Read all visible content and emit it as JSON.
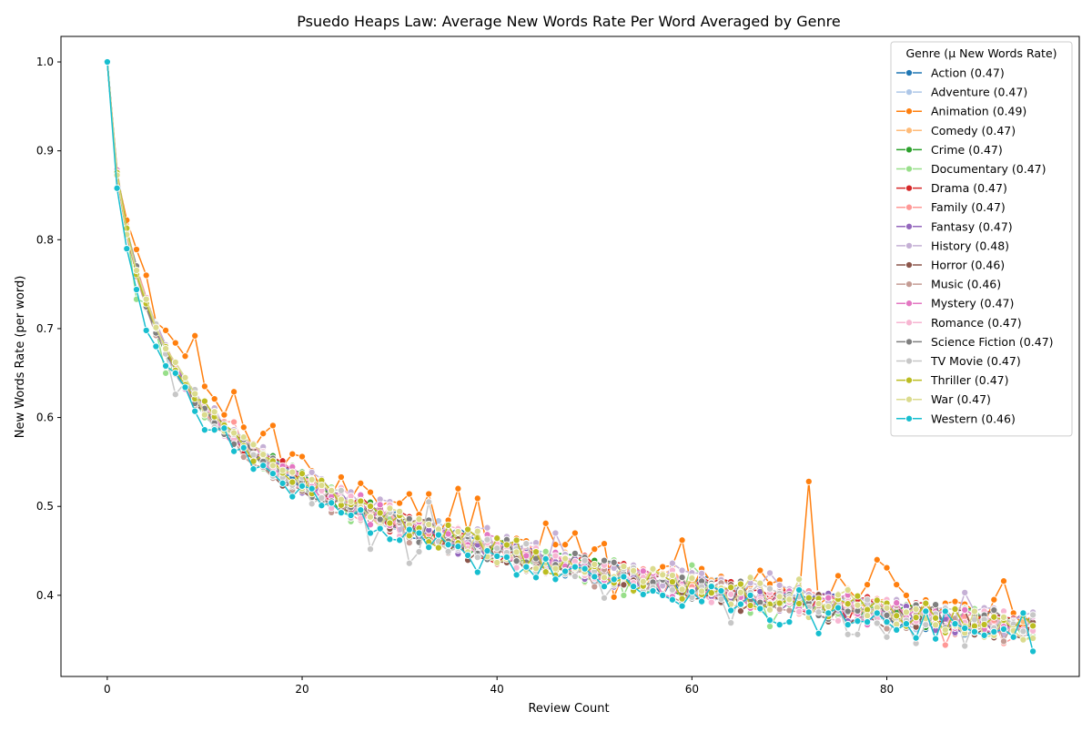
{
  "chart_data": {
    "type": "line",
    "title": "Psuedo Heaps Law: Average New Words Rate Per Word Averaged by Genre",
    "xlabel": "Review Count",
    "ylabel": "New Words Rate (per word)",
    "xlim": [
      -4.75,
      99.75
    ],
    "ylim": [
      0.3087,
      1.0287
    ],
    "x_ticks": [
      0,
      20,
      40,
      60,
      80
    ],
    "y_ticks": [
      0.4,
      0.5,
      0.6,
      0.7,
      0.8,
      0.9,
      1.0
    ],
    "x_tick_labels": [
      "0",
      "20",
      "40",
      "60",
      "80"
    ],
    "y_tick_labels": [
      "0.4",
      "0.5",
      "0.6",
      "0.7",
      "0.8",
      "0.9",
      "1.0"
    ],
    "grid": false,
    "legend_title": "Genre (μ New Words Rate)",
    "legend_position": "top-right",
    "series": [
      {
        "name": "Action (0.47)",
        "mean": 0.47,
        "color": "#1f77b4"
      },
      {
        "name": "Adventure (0.47)",
        "mean": 0.47,
        "color": "#aec7e8"
      },
      {
        "name": "Animation (0.49)",
        "mean": 0.49,
        "color": "#ff7f0e",
        "overrides": {
          "2": 0.822,
          "3": 0.789,
          "4": 0.76,
          "6": 0.698,
          "7": 0.684,
          "8": 0.669,
          "9": 0.692,
          "10": 0.635,
          "11": 0.621,
          "12": 0.603,
          "13": 0.629,
          "14": 0.589,
          "16": 0.582,
          "17": 0.591,
          "19": 0.559,
          "20": 0.556,
          "21": 0.54,
          "24": 0.533,
          "26": 0.526,
          "27": 0.516,
          "29": 0.506,
          "31": 0.514,
          "33": 0.514,
          "36": 0.52,
          "37": 0.47,
          "38": 0.509,
          "42": 0.464,
          "45": 0.481,
          "46": 0.457,
          "47": 0.457,
          "48": 0.47,
          "50": 0.452,
          "51": 0.458,
          "52": 0.398,
          "59": 0.462,
          "61": 0.43,
          "62": 0.415,
          "67": 0.428,
          "69": 0.417,
          "72": 0.528,
          "73": 0.39,
          "75": 0.422,
          "78": 0.412,
          "79": 0.44,
          "80": 0.431,
          "81": 0.412,
          "82": 0.4,
          "88": 0.39,
          "91": 0.395,
          "92": 0.416,
          "93": 0.38,
          "95": 0.38
        }
      },
      {
        "name": "Comedy (0.47)",
        "mean": 0.47,
        "color": "#ffbb78"
      },
      {
        "name": "Crime (0.47)",
        "mean": 0.47,
        "color": "#2ca02c"
      },
      {
        "name": "Documentary (0.47)",
        "mean": 0.47,
        "color": "#98df8a",
        "overrides": {
          "3": 0.733,
          "6": 0.65,
          "10": 0.6,
          "17": 0.533,
          "25": 0.483,
          "53": 0.4,
          "60": 0.434,
          "66": 0.38,
          "68": 0.365,
          "80": 0.395
        }
      },
      {
        "name": "Drama (0.47)",
        "mean": 0.47,
        "color": "#d62728"
      },
      {
        "name": "Family (0.47)",
        "mean": 0.47,
        "color": "#ff9896",
        "overrides": {
          "13": 0.595,
          "86": 0.344,
          "92": 0.346
        }
      },
      {
        "name": "Fantasy (0.47)",
        "mean": 0.47,
        "color": "#9467bd"
      },
      {
        "name": "History (0.48)",
        "mean": 0.48,
        "color": "#c5b0d5",
        "overrides": {
          "39": 0.476,
          "41": 0.466,
          "46": 0.47,
          "58": 0.436,
          "68": 0.425,
          "88": 0.403
        }
      },
      {
        "name": "Horror (0.46)",
        "mean": 0.46,
        "color": "#8c564b"
      },
      {
        "name": "Music (0.46)",
        "mean": 0.46,
        "color": "#c49c94"
      },
      {
        "name": "Mystery (0.47)",
        "mean": 0.47,
        "color": "#e377c2"
      },
      {
        "name": "Romance (0.47)",
        "mean": 0.47,
        "color": "#f7b6d2"
      },
      {
        "name": "Science Fiction (0.47)",
        "mean": 0.47,
        "color": "#7f7f7f"
      },
      {
        "name": "TV Movie (0.47)",
        "mean": 0.47,
        "color": "#c7c7c7",
        "overrides": {
          "7": 0.626,
          "21": 0.503,
          "27": 0.452,
          "31": 0.436,
          "32": 0.449,
          "33": 0.505,
          "51": 0.397,
          "64": 0.369,
          "76": 0.356,
          "77": 0.356,
          "80": 0.353,
          "83": 0.346,
          "88": 0.343
        }
      },
      {
        "name": "Thriller (0.47)",
        "mean": 0.47,
        "color": "#bcbd22"
      },
      {
        "name": "War (0.47)",
        "mean": 0.47,
        "color": "#dbdb8d",
        "overrides": {
          "38": 0.472,
          "66": 0.42,
          "71": 0.418,
          "76": 0.406
        }
      },
      {
        "name": "Western (0.46)",
        "mean": 0.46,
        "color": "#17becf",
        "overrides": {
          "0": 1.0,
          "1": 0.858,
          "2": 0.79,
          "3": 0.744,
          "4": 0.698,
          "5": 0.68,
          "6": 0.658,
          "7": 0.65,
          "8": 0.634,
          "9": 0.607,
          "10": 0.586,
          "11": 0.586,
          "12": 0.588,
          "13": 0.562,
          "14": 0.566,
          "15": 0.542,
          "16": 0.546,
          "17": 0.537,
          "18": 0.526,
          "19": 0.511,
          "20": 0.523,
          "21": 0.52,
          "22": 0.501,
          "23": 0.504,
          "24": 0.493,
          "25": 0.49,
          "26": 0.496,
          "27": 0.47,
          "28": 0.475,
          "29": 0.463,
          "30": 0.462,
          "31": 0.474,
          "32": 0.47,
          "33": 0.454,
          "34": 0.468,
          "35": 0.457,
          "36": 0.455,
          "37": 0.445,
          "38": 0.426,
          "39": 0.45,
          "40": 0.444,
          "41": 0.443,
          "42": 0.423,
          "43": 0.432,
          "44": 0.42,
          "45": 0.441,
          "46": 0.418,
          "47": 0.427,
          "48": 0.432,
          "49": 0.43,
          "50": 0.421,
          "51": 0.41,
          "52": 0.418,
          "53": 0.421,
          "54": 0.41,
          "55": 0.401,
          "56": 0.405,
          "57": 0.4,
          "58": 0.395,
          "59": 0.388,
          "60": 0.404,
          "61": 0.393,
          "62": 0.41,
          "63": 0.405,
          "64": 0.383,
          "65": 0.39,
          "66": 0.4,
          "67": 0.385,
          "68": 0.372,
          "69": 0.367,
          "70": 0.37,
          "71": 0.406,
          "72": 0.381,
          "73": 0.357,
          "74": 0.38,
          "75": 0.386,
          "76": 0.367,
          "77": 0.371,
          "78": 0.37,
          "79": 0.38,
          "80": 0.37,
          "81": 0.361,
          "82": 0.368,
          "83": 0.352,
          "84": 0.382,
          "85": 0.351,
          "86": 0.382,
          "87": 0.368,
          "88": 0.363,
          "89": 0.359,
          "90": 0.355,
          "91": 0.359,
          "92": 0.362,
          "93": 0.353,
          "94": 0.38,
          "95": 0.337
        }
      }
    ],
    "base_curve": [
      1.0,
      0.875,
      0.81,
      0.765,
      0.73,
      0.7,
      0.675,
      0.655,
      0.638,
      0.623,
      0.61,
      0.598,
      0.588,
      0.578,
      0.569,
      0.561,
      0.553,
      0.546,
      0.539,
      0.533,
      0.527,
      0.522,
      0.516,
      0.511,
      0.507,
      0.502,
      0.498,
      0.494,
      0.49,
      0.486,
      0.482,
      0.478,
      0.475,
      0.472,
      0.468,
      0.465,
      0.462,
      0.459,
      0.457,
      0.454,
      0.451,
      0.448,
      0.446,
      0.443,
      0.441,
      0.439,
      0.436,
      0.434,
      0.432,
      0.43,
      0.428,
      0.426,
      0.424,
      0.422,
      0.42,
      0.418,
      0.416,
      0.414,
      0.413,
      0.411,
      0.409,
      0.407,
      0.406,
      0.404,
      0.402,
      0.401,
      0.399,
      0.398,
      0.396,
      0.395,
      0.393,
      0.392,
      0.391,
      0.389,
      0.388,
      0.387,
      0.385,
      0.384,
      0.383,
      0.381,
      0.38,
      0.379,
      0.378,
      0.377,
      0.376,
      0.374,
      0.373,
      0.372,
      0.371,
      0.37,
      0.369,
      0.368,
      0.367,
      0.366,
      0.365,
      0.364
    ]
  }
}
